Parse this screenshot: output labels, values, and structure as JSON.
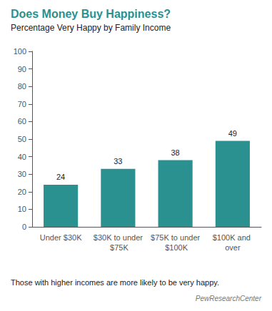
{
  "chart_data": {
    "type": "bar",
    "title": "Does Money Buy Happiness?",
    "subtitle": "Percentage Very Happy by Family Income",
    "categories": [
      "Under $30K",
      "$30K to under $75K",
      "$75K to under $100K",
      "$100K and over"
    ],
    "values": [
      24,
      33,
      38,
      49
    ],
    "color": "#2a9090",
    "ylim": [
      0,
      100
    ],
    "yticks": [
      0,
      10,
      20,
      30,
      40,
      50,
      60,
      70,
      80,
      90,
      100
    ],
    "grid": false,
    "data_labels": true,
    "footnote": "Those with higher incomes are more likely to be very happy.",
    "source": "PewResearchCenter"
  }
}
